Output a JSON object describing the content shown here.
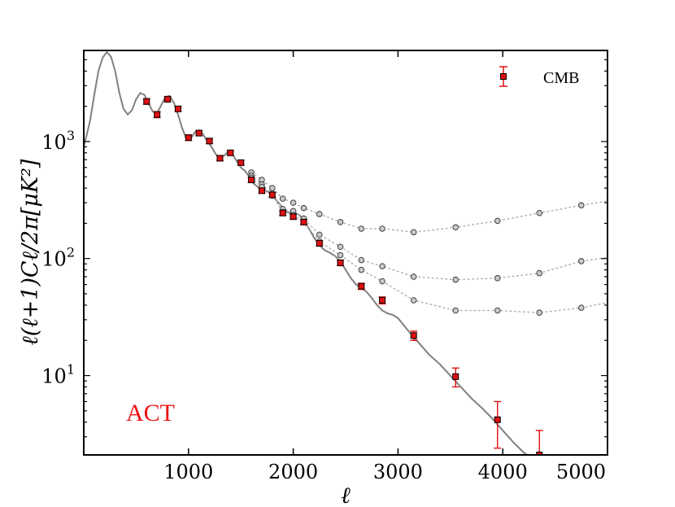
{
  "chart_data": {
    "type": "scatter",
    "title": "",
    "xlabel": "ℓ",
    "ylabel": "ℓ(ℓ+1)Cℓ/2π[μK²]",
    "xlim": [
      0,
      5000
    ],
    "ylim": [
      2.1,
      6000
    ],
    "yscale": "log",
    "x_ticks": [
      1000,
      2000,
      3000,
      4000,
      5000
    ],
    "x_tick_labels": [
      "1000",
      "2000",
      "3000",
      "4000",
      "5000"
    ],
    "y_ticks": [
      10,
      100,
      1000
    ],
    "y_tick_labels": [
      {
        "base": "10",
        "exp": "1"
      },
      {
        "base": "10",
        "exp": "2"
      },
      {
        "base": "10",
        "exp": "3"
      }
    ],
    "legend": {
      "label": "CMB",
      "position": "top-right"
    },
    "annotation": {
      "text": "ACT",
      "color": "#ee1111",
      "position": "bottom-left"
    },
    "colors": {
      "cmb": "#e01010",
      "model_line": "#808080",
      "gray_points": "#c8c8c8",
      "dotted": "#b0b0b0"
    },
    "cmb_points": [
      {
        "x": 600,
        "y": 2200,
        "err": 120
      },
      {
        "x": 700,
        "y": 1700,
        "err": 100
      },
      {
        "x": 800,
        "y": 2300,
        "err": 120
      },
      {
        "x": 900,
        "y": 1900,
        "err": 90
      },
      {
        "x": 1000,
        "y": 1080,
        "err": 60
      },
      {
        "x": 1100,
        "y": 1180,
        "err": 60
      },
      {
        "x": 1200,
        "y": 1010,
        "err": 50
      },
      {
        "x": 1300,
        "y": 720,
        "err": 35
      },
      {
        "x": 1400,
        "y": 800,
        "err": 35
      },
      {
        "x": 1500,
        "y": 660,
        "err": 30
      },
      {
        "x": 1600,
        "y": 470,
        "err": 22
      },
      {
        "x": 1700,
        "y": 380,
        "err": 18
      },
      {
        "x": 1800,
        "y": 350,
        "err": 16
      },
      {
        "x": 1900,
        "y": 245,
        "err": 12
      },
      {
        "x": 2000,
        "y": 228,
        "err": 11
      },
      {
        "x": 2100,
        "y": 205,
        "err": 10
      },
      {
        "x": 2250,
        "y": 135,
        "err": 7
      },
      {
        "x": 2450,
        "y": 92,
        "err": 5
      },
      {
        "x": 2650,
        "y": 58,
        "err": 3.5
      },
      {
        "x": 2850,
        "y": 44,
        "err": 3
      },
      {
        "x": 3150,
        "y": 22,
        "err": 2
      },
      {
        "x": 3550,
        "y": 9.8,
        "err": 1.8
      },
      {
        "x": 3950,
        "y": 4.2,
        "err": 1.8
      },
      {
        "x": 4350,
        "y": 2.1,
        "err": 1.3
      }
    ],
    "model_curve": {
      "x": [
        0,
        60,
        100,
        140,
        180,
        220,
        260,
        300,
        340,
        380,
        420,
        460,
        500,
        540,
        580,
        620,
        660,
        700,
        740,
        780,
        820,
        860,
        900,
        940,
        980,
        1020,
        1060,
        1100,
        1140,
        1180,
        1220,
        1260,
        1300,
        1340,
        1380,
        1420,
        1460,
        1500,
        1540,
        1580,
        1620,
        1660,
        1700,
        1740,
        1780,
        1820,
        1860,
        1900,
        1940,
        1980,
        2020,
        2060,
        2100,
        2150,
        2200,
        2250,
        2300,
        2350,
        2400,
        2450,
        2500,
        2550,
        2600,
        2650,
        2700,
        2750,
        2800,
        2850,
        2900,
        2950,
        3000,
        3100,
        3200,
        3300,
        3400,
        3500,
        3600,
        3700,
        3800,
        3900,
        4000,
        4100,
        4200,
        4250
      ],
      "y": [
        900,
        1500,
        2500,
        4000,
        5200,
        5800,
        5300,
        4000,
        2600,
        1900,
        1700,
        1850,
        2300,
        2600,
        2500,
        2100,
        1800,
        1750,
        2050,
        2400,
        2450,
        2150,
        1700,
        1300,
        1050,
        1050,
        1200,
        1250,
        1150,
        1000,
        900,
        780,
        720,
        760,
        820,
        780,
        680,
        600,
        560,
        500,
        440,
        410,
        400,
        380,
        360,
        330,
        300,
        270,
        250,
        245,
        245,
        235,
        210,
        180,
        150,
        130,
        118,
        112,
        105,
        95,
        80,
        68,
        60,
        56,
        52,
        46,
        40,
        36,
        34,
        33,
        31,
        24,
        19,
        15,
        12.5,
        10,
        8.0,
        6.4,
        5.3,
        4.3,
        3.4,
        2.7,
        2.2,
        2.05
      ]
    },
    "gray_series": [
      {
        "name": "upper",
        "points": [
          [
            1600,
            545
          ],
          [
            1700,
            470
          ],
          [
            1800,
            400
          ],
          [
            1900,
            325
          ],
          [
            2000,
            300
          ],
          [
            2100,
            270
          ],
          [
            2250,
            240
          ],
          [
            2450,
            205
          ],
          [
            2650,
            180
          ],
          [
            2850,
            180
          ],
          [
            3150,
            168
          ],
          [
            3550,
            185
          ],
          [
            3950,
            210
          ],
          [
            4350,
            245
          ],
          [
            4750,
            285
          ]
        ],
        "tail": [
          5000,
          310
        ]
      },
      {
        "name": "middle",
        "points": [
          [
            1600,
            510
          ],
          [
            1700,
            430
          ],
          [
            1800,
            360
          ],
          [
            1900,
            265
          ],
          [
            2000,
            255
          ],
          [
            2100,
            220
          ],
          [
            2250,
            160
          ],
          [
            2450,
            126
          ],
          [
            2650,
            97
          ],
          [
            2850,
            86
          ],
          [
            3150,
            70
          ],
          [
            3550,
            66
          ],
          [
            3950,
            68
          ],
          [
            4350,
            75
          ],
          [
            4750,
            95
          ]
        ],
        "tail": [
          5000,
          102
        ]
      },
      {
        "name": "lower",
        "points": [
          [
            1600,
            490
          ],
          [
            1700,
            410
          ],
          [
            1800,
            345
          ],
          [
            1900,
            250
          ],
          [
            2000,
            235
          ],
          [
            2100,
            205
          ],
          [
            2250,
            140
          ],
          [
            2450,
            107
          ],
          [
            2650,
            80
          ],
          [
            2850,
            64
          ],
          [
            3150,
            44
          ],
          [
            3550,
            36
          ],
          [
            3950,
            36
          ],
          [
            4350,
            34.5
          ],
          [
            4750,
            38
          ]
        ],
        "tail": [
          5000,
          42
        ]
      }
    ]
  }
}
